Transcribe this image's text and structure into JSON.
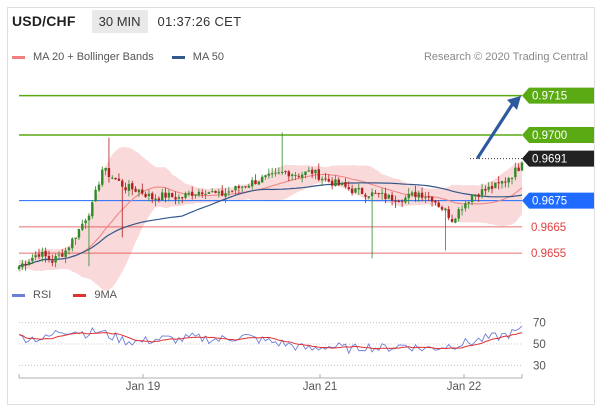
{
  "header": {
    "pair": "USD/CHF",
    "timeframe": "30 MIN",
    "time": "01:37:26 CET"
  },
  "legend": {
    "ma20_label": "MA 20 + Bollinger Bands",
    "ma50_label": "MA 50",
    "credit": "Research © 2020 Trading Central"
  },
  "rsi_legend": {
    "rsi_label": "RSI",
    "ma9_label": "9MA"
  },
  "colors": {
    "resistance": "#5aaa14",
    "current": "#222222",
    "pivot": "#1f6bff",
    "support": "#e04040",
    "bollinger": "#f7c9c9",
    "ma20": "#f08080",
    "ma50": "#34588a",
    "up": "#2f8a2a",
    "down": "#b02020",
    "arrow": "#2d5a9e",
    "rsi": "#6b7fd9",
    "rsi_ma": "#e03030"
  },
  "chart_data": {
    "type": "candlestick",
    "ylim": [
      9644,
      9724
    ],
    "x_ticks": [
      "Jan 19",
      "Jan 21",
      "Jan 22"
    ],
    "levels": [
      {
        "value": 9715,
        "label": "0.9715",
        "kind": "resistance"
      },
      {
        "value": 9700,
        "label": "0.9700",
        "kind": "resistance"
      },
      {
        "value": 9691,
        "label": "0.9691",
        "kind": "current"
      },
      {
        "value": 9675,
        "label": "0.9675",
        "kind": "pivot"
      },
      {
        "value": 9665,
        "label": "0.9665",
        "kind": "support"
      },
      {
        "value": 9655,
        "label": "0.9655",
        "kind": "support"
      }
    ],
    "price_anchors": [
      [
        0,
        9650
      ],
      [
        6,
        9655
      ],
      [
        10,
        9652
      ],
      [
        14,
        9656
      ],
      [
        18,
        9664
      ],
      [
        22,
        9673
      ],
      [
        25,
        9687
      ],
      [
        28,
        9684
      ],
      [
        32,
        9680
      ],
      [
        36,
        9679
      ],
      [
        40,
        9676
      ],
      [
        44,
        9677
      ],
      [
        48,
        9676
      ],
      [
        52,
        9678
      ],
      [
        56,
        9679
      ],
      [
        60,
        9677
      ],
      [
        64,
        9679
      ],
      [
        68,
        9681
      ],
      [
        72,
        9683
      ],
      [
        76,
        9684
      ],
      [
        80,
        9686
      ],
      [
        84,
        9685
      ],
      [
        88,
        9686
      ],
      [
        92,
        9683
      ],
      [
        96,
        9681
      ],
      [
        100,
        9679
      ],
      [
        104,
        9678
      ],
      [
        108,
        9677
      ],
      [
        112,
        9676
      ],
      [
        116,
        9676
      ],
      [
        120,
        9678
      ],
      [
        124,
        9676
      ],
      [
        128,
        9671
      ],
      [
        130,
        9668
      ],
      [
        133,
        9673
      ],
      [
        136,
        9677
      ],
      [
        140,
        9679
      ],
      [
        144,
        9681
      ],
      [
        148,
        9685
      ],
      [
        151,
        9689
      ]
    ],
    "rsi": {
      "ylim": [
        20,
        80
      ],
      "ticks": [
        70,
        50,
        30
      ],
      "anchors": [
        [
          0,
          56
        ],
        [
          8,
          55
        ],
        [
          12,
          62
        ],
        [
          16,
          63
        ],
        [
          20,
          60
        ],
        [
          24,
          62
        ],
        [
          28,
          57
        ],
        [
          32,
          53
        ],
        [
          36,
          52
        ],
        [
          40,
          54
        ],
        [
          44,
          55
        ],
        [
          48,
          54
        ],
        [
          52,
          56
        ],
        [
          56,
          55
        ],
        [
          60,
          54
        ],
        [
          64,
          56
        ],
        [
          68,
          57
        ],
        [
          72,
          54
        ],
        [
          76,
          52
        ],
        [
          80,
          50
        ],
        [
          84,
          47
        ],
        [
          88,
          45
        ],
        [
          92,
          48
        ],
        [
          96,
          47
        ],
        [
          100,
          45
        ],
        [
          104,
          48
        ],
        [
          108,
          46
        ],
        [
          112,
          47
        ],
        [
          116,
          49
        ],
        [
          120,
          46
        ],
        [
          124,
          46
        ],
        [
          128,
          48
        ],
        [
          132,
          50
        ],
        [
          136,
          52
        ],
        [
          140,
          55
        ],
        [
          144,
          57
        ],
        [
          148,
          60
        ],
        [
          151,
          63
        ]
      ]
    }
  }
}
